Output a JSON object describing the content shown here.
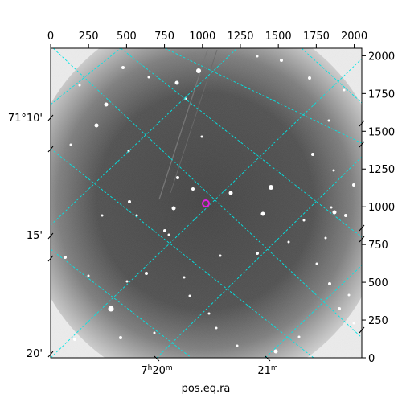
{
  "image": {
    "kind": "astronomical-image",
    "colormap": "grayscale",
    "grid_color": "#00e5e5",
    "marker_color": "#e020e0"
  },
  "axes": {
    "top_x_ticks": [
      "0",
      "250",
      "500",
      "750",
      "1000",
      "1250",
      "1500",
      "1750",
      "2000"
    ],
    "right_y_ticks": [
      "0",
      "250",
      "500",
      "750",
      "1000",
      "1250",
      "1500",
      "1750",
      "2000"
    ],
    "left_dec_ticks": [
      "71°10'",
      "15'",
      "20'"
    ],
    "bottom_ra_ticks": [
      {
        "main": "7",
        "sup1": "h",
        "mid": "20",
        "sup2": "m"
      },
      {
        "main": "21",
        "sup1": "",
        "mid": "",
        "sup2": "m"
      }
    ],
    "bottom_label": "pos.eq.ra"
  }
}
